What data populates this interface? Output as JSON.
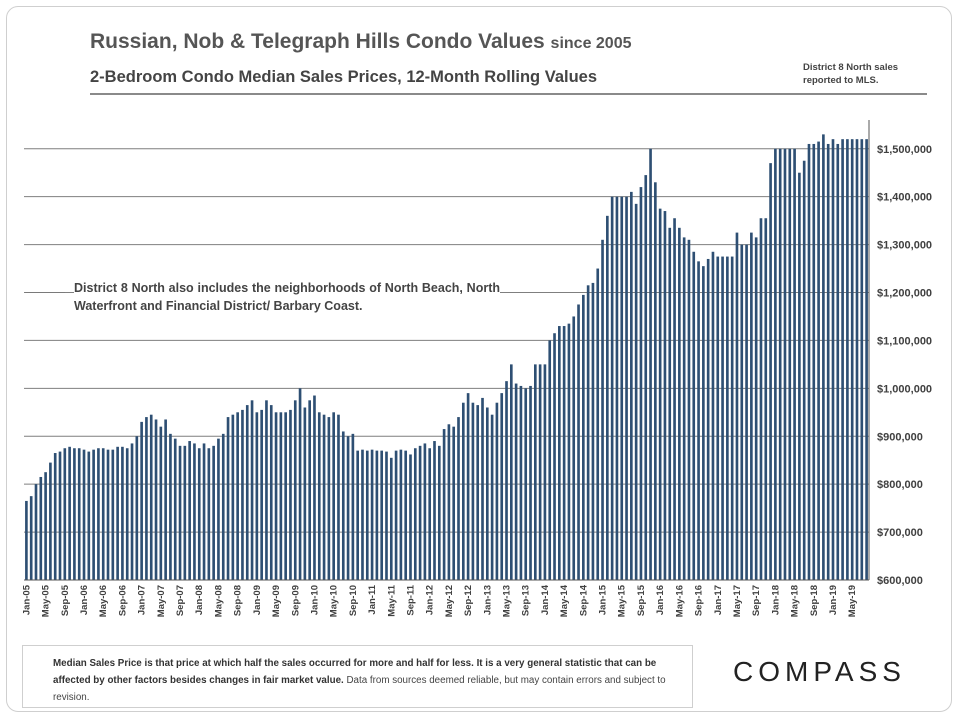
{
  "header": {
    "title_main": "Russian, Nob & Telegraph Hills Condo Values",
    "title_suffix": "since 2005",
    "subtitle": "2-Bedroom Condo Median Sales Prices, 12-Month Rolling Values"
  },
  "top_note": {
    "line1": "District 8 North sales",
    "line2": "reported to MLS."
  },
  "annotation": "District 8 North also includes the neighborhoods of North Beach, North Waterfront and Financial District/ Barbary Coast.",
  "footer": {
    "bold_text": "Median Sales Price is that price at which half the sales occurred for more and half for less. It is a very general statistic that can be affected by other factors besides changes in fair market value.",
    "rest_text": " Data from sources deemed reliable, but may contain errors and subject to revision."
  },
  "brand": {
    "logo_text": "COMPASS"
  },
  "colors": {
    "bar": "#2e4f73",
    "grid": "#7f7f7f",
    "axis_text": "#404040"
  },
  "chart_data": {
    "type": "bar",
    "title": "Russian, Nob & Telegraph Hills Condo Values since 2005",
    "ylabel": "",
    "xlabel": "",
    "ylim": [
      600000,
      1560000
    ],
    "yticks": [
      600000,
      700000,
      800000,
      900000,
      1000000,
      1100000,
      1200000,
      1300000,
      1400000,
      1500000
    ],
    "ytick_labels": [
      "$600,000",
      "$700,000",
      "$800,000",
      "$900,000",
      "$1,000,000",
      "$1,100,000",
      "$1,200,000",
      "$1,300,000",
      "$1,400,000",
      "$1,500,000"
    ],
    "grid": true,
    "start_month": "Jan-05",
    "xtick_labels": [
      "Jan-05",
      "May-05",
      "Sep-05",
      "Jan-06",
      "May-06",
      "Sep-06",
      "Jan-07",
      "May-07",
      "Sep-07",
      "Jan-08",
      "May-08",
      "Sep-08",
      "Jan-09",
      "May-09",
      "Sep-09",
      "Jan-10",
      "May-10",
      "Sep-10",
      "Jan-11",
      "May-11",
      "Sep-11",
      "Jan-12",
      "May-12",
      "Sep-12",
      "Jan-13",
      "May-13",
      "Sep-13",
      "Jan-14",
      "May-14",
      "Sep-14",
      "Jan-15",
      "May-15",
      "Sep-15",
      "Jan-16",
      "May-16",
      "Sep-16",
      "Jan-17",
      "May-17",
      "Sep-17",
      "Jan-18",
      "May-18",
      "Sep-18",
      "Jan-19",
      "May-19"
    ],
    "values": [
      765000,
      775000,
      800000,
      815000,
      825000,
      845000,
      865000,
      868000,
      875000,
      878000,
      875000,
      875000,
      872000,
      868000,
      872000,
      875000,
      875000,
      872000,
      872000,
      878000,
      878000,
      875000,
      885000,
      900000,
      930000,
      940000,
      945000,
      935000,
      920000,
      935000,
      905000,
      895000,
      880000,
      880000,
      890000,
      885000,
      875000,
      885000,
      875000,
      880000,
      895000,
      905000,
      940000,
      945000,
      950000,
      955000,
      965000,
      975000,
      950000,
      955000,
      975000,
      965000,
      950000,
      950000,
      950000,
      955000,
      975000,
      1000000,
      960000,
      975000,
      985000,
      950000,
      945000,
      940000,
      950000,
      945000,
      910000,
      900000,
      905000,
      870000,
      872000,
      870000,
      872000,
      870000,
      870000,
      868000,
      855000,
      870000,
      872000,
      870000,
      862000,
      875000,
      880000,
      885000,
      875000,
      890000,
      880000,
      915000,
      925000,
      920000,
      940000,
      970000,
      990000,
      970000,
      965000,
      980000,
      960000,
      945000,
      970000,
      990000,
      1015000,
      1050000,
      1010000,
      1005000,
      1000000,
      1005000,
      1050000,
      1050000,
      1050000,
      1100000,
      1115000,
      1130000,
      1130000,
      1135000,
      1150000,
      1175000,
      1195000,
      1215000,
      1220000,
      1250000,
      1310000,
      1360000,
      1400000,
      1400000,
      1400000,
      1400000,
      1410000,
      1385000,
      1420000,
      1445000,
      1500000,
      1430000,
      1375000,
      1370000,
      1335000,
      1355000,
      1335000,
      1315000,
      1310000,
      1285000,
      1265000,
      1255000,
      1270000,
      1285000,
      1275000,
      1275000,
      1275000,
      1275000,
      1325000,
      1300000,
      1300000,
      1325000,
      1315000,
      1355000,
      1355000,
      1470000,
      1500000,
      1500000,
      1500000,
      1500000,
      1500000,
      1450000,
      1475000,
      1510000,
      1510000,
      1515000,
      1530000,
      1510000,
      1520000,
      1510000,
      1520000,
      1520000,
      1520000,
      1520000,
      1520000,
      1520000
    ]
  }
}
